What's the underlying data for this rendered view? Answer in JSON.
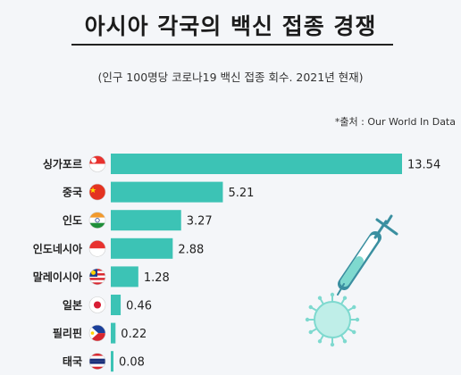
{
  "header": {
    "title": "아시아 각국의 백신 접종 경쟁",
    "subtitle": "(인구 100명당 코로나19 백신 접종 회수. 2021년 현재)",
    "source": "*출처 :  Our World In Data"
  },
  "colors": {
    "bar": "#3cc3b5",
    "text": "#222222",
    "background": "#f4f6f9"
  },
  "chart_data": {
    "type": "bar",
    "orientation": "horizontal",
    "categories": [
      "싱가포르",
      "중국",
      "인도",
      "인도네시아",
      "말레이시아",
      "일본",
      "필리핀",
      "태국"
    ],
    "values": [
      13.54,
      5.21,
      3.27,
      2.88,
      1.28,
      0.46,
      0.22,
      0.08
    ],
    "value_labels": [
      "13.54",
      "5.21",
      "3.27",
      "2.88",
      "1.28",
      "0.46",
      "0.22",
      "0.08"
    ],
    "flags": [
      "singapore-flag-icon",
      "china-flag-icon",
      "india-flag-icon",
      "indonesia-flag-icon",
      "malaysia-flag-icon",
      "japan-flag-icon",
      "philippines-flag-icon",
      "thailand-flag-icon"
    ],
    "xlim": [
      0,
      13.54
    ],
    "grid": false,
    "legend": "none"
  }
}
